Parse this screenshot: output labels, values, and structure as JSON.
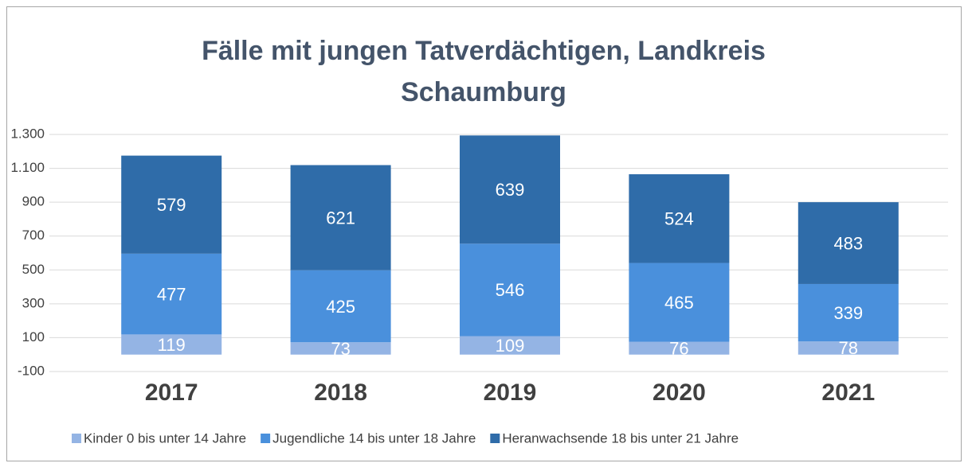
{
  "chart_data": {
    "type": "stacked_bar",
    "title": "Fälle mit jungen Tatverdächtigen, Landkreis Schaumburg",
    "categories": [
      "2017",
      "2018",
      "2019",
      "2020",
      "2021"
    ],
    "series": [
      {
        "name": "Kinder 0 bis unter 14 Jahre",
        "color": "#94b4e4",
        "values": [
          119,
          73,
          109,
          76,
          78
        ]
      },
      {
        "name": "Jugendliche 14 bis unter 18 Jahre",
        "color": "#4a90dc",
        "values": [
          477,
          425,
          546,
          465,
          339
        ]
      },
      {
        "name": "Heranwachsende 18 bis unter 21 Jahre",
        "color": "#2f6ca9",
        "values": [
          579,
          621,
          639,
          524,
          483
        ]
      }
    ],
    "ylim": [
      -100,
      1300
    ],
    "yticks": [
      -100,
      100,
      300,
      500,
      700,
      900,
      {
        "value": 1100,
        "label": "1.100"
      },
      {
        "value": 1300,
        "label": "1.300"
      }
    ],
    "grid": true,
    "legend": "bottom"
  }
}
